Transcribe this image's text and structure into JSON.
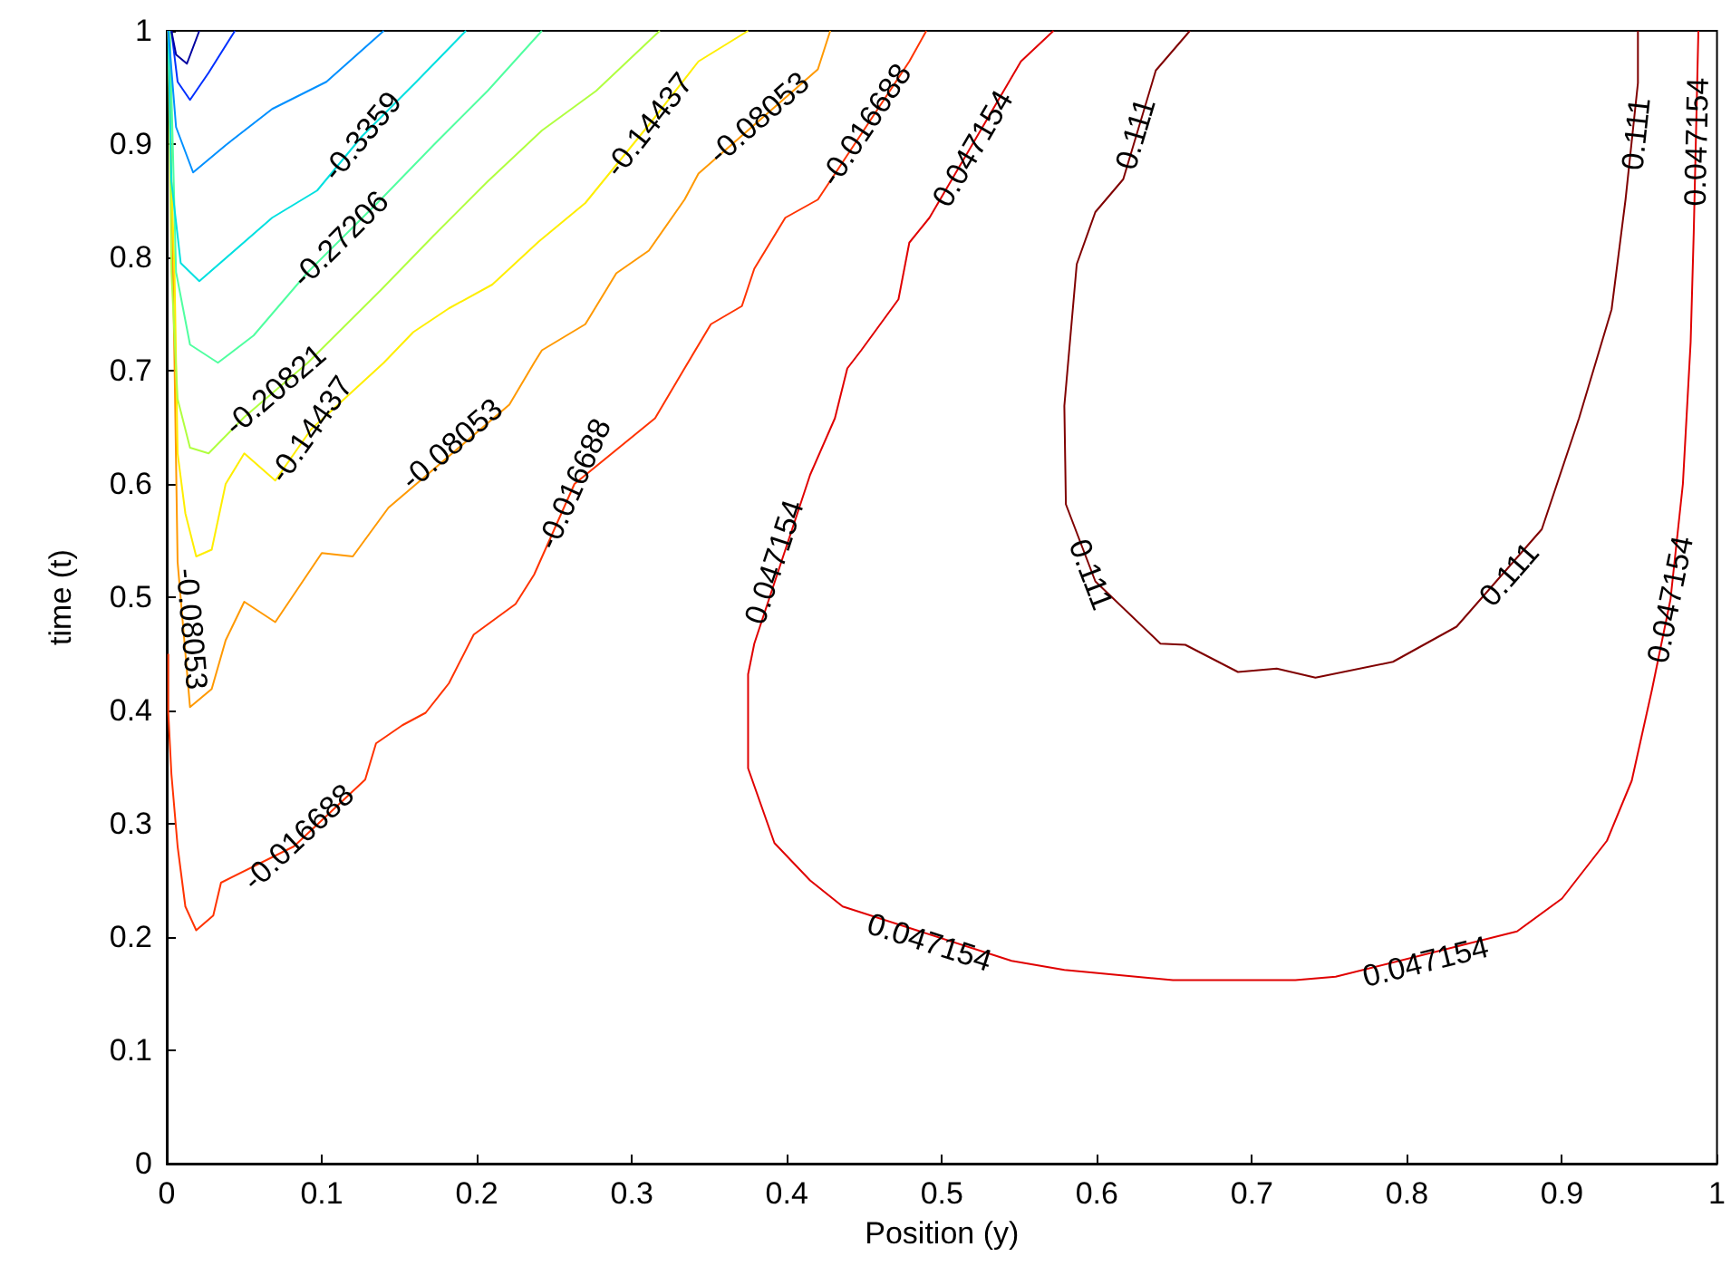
{
  "chart_data": {
    "type": "line",
    "xlabel": "Position (y)",
    "ylabel": "time (t)",
    "xlim": [
      0,
      1
    ],
    "ylim": [
      0,
      1
    ],
    "xticks": [
      0,
      0.1,
      0.2,
      0.3,
      0.4,
      0.5,
      0.6,
      0.7,
      0.8,
      0.9,
      1
    ],
    "yticks": [
      0,
      0.1,
      0.2,
      0.3,
      0.4,
      0.5,
      0.6,
      0.7,
      0.8,
      0.9,
      1
    ],
    "grid": false,
    "marker": "none",
    "line_style": "solid",
    "series": [
      {
        "color": "#800000",
        "x": [
          0.66,
          0.638,
          0.617,
          0.599,
          0.587,
          0.579,
          0.58,
          0.599,
          0.641,
          0.657,
          0.691,
          0.716,
          0.741,
          0.791,
          0.832,
          0.887,
          0.911,
          0.932,
          0.941,
          0.949,
          0.949
        ],
        "values": [
          1,
          0.965,
          0.869,
          0.84,
          0.794,
          0.669,
          0.582,
          0.514,
          0.459,
          0.458,
          0.434,
          0.437,
          0.429,
          0.443,
          0.474,
          0.56,
          0.658,
          0.754,
          0.851,
          0.954,
          1
        ]
      },
      {
        "color": "#e00000",
        "x": [
          0.572,
          0.551,
          0.492,
          0.479,
          0.472,
          0.448,
          0.439,
          0.431,
          0.415,
          0.379,
          0.375,
          0.375,
          0.392,
          0.415,
          0.436,
          0.545,
          0.579,
          0.649,
          0.728,
          0.754,
          0.871,
          0.9,
          0.929,
          0.945,
          0.958,
          0.97,
          0.978,
          0.983,
          0.985,
          0.988
        ],
        "values": [
          1,
          0.973,
          0.835,
          0.813,
          0.763,
          0.718,
          0.702,
          0.658,
          0.608,
          0.459,
          0.432,
          0.349,
          0.283,
          0.25,
          0.227,
          0.179,
          0.171,
          0.162,
          0.162,
          0.165,
          0.205,
          0.234,
          0.285,
          0.338,
          0.418,
          0.498,
          0.6,
          0.725,
          0.822,
          1
        ]
      },
      {
        "color": "#ff3300",
        "x": [
          0.001,
          0.001,
          0.003,
          0.007,
          0.012,
          0.019,
          0.03,
          0.035,
          0.082,
          0.128,
          0.135,
          0.152,
          0.167,
          0.182,
          0.198,
          0.225,
          0.237,
          0.263,
          0.315,
          0.334,
          0.351,
          0.371,
          0.379,
          0.399,
          0.42,
          0.479,
          0.49
        ],
        "values": [
          0.45,
          0.398,
          0.344,
          0.28,
          0.227,
          0.206,
          0.219,
          0.248,
          0.28,
          0.339,
          0.371,
          0.387,
          0.398,
          0.424,
          0.467,
          0.494,
          0.52,
          0.6,
          0.658,
          0.702,
          0.741,
          0.757,
          0.79,
          0.835,
          0.851,
          0.973,
          1
        ]
      },
      {
        "color": "#ff9900",
        "x": [
          0.001,
          0.003,
          0.005,
          0.007,
          0.015,
          0.029,
          0.038,
          0.05,
          0.07,
          0.1,
          0.12,
          0.143,
          0.221,
          0.237,
          0.242,
          0.27,
          0.29,
          0.311,
          0.334,
          0.343,
          0.42,
          0.428
        ],
        "values": [
          1,
          0.867,
          0.707,
          0.531,
          0.403,
          0.419,
          0.462,
          0.496,
          0.478,
          0.539,
          0.536,
          0.579,
          0.67,
          0.707,
          0.718,
          0.741,
          0.786,
          0.806,
          0.851,
          0.874,
          0.966,
          1
        ]
      },
      {
        "color": "#ffee00",
        "x": [
          0.002,
          0.003,
          0.005,
          0.007,
          0.012,
          0.019,
          0.029,
          0.038,
          0.05,
          0.07,
          0.093,
          0.14,
          0.159,
          0.182,
          0.21,
          0.24,
          0.27,
          0.311,
          0.343,
          0.375
        ],
        "values": [
          1,
          0.867,
          0.787,
          0.627,
          0.574,
          0.536,
          0.542,
          0.6,
          0.627,
          0.603,
          0.648,
          0.707,
          0.734,
          0.755,
          0.776,
          0.814,
          0.848,
          0.917,
          0.973,
          1
        ]
      },
      {
        "color": "#b0ff40",
        "x": [
          0.001,
          0.003,
          0.007,
          0.015,
          0.027,
          0.05,
          0.091,
          0.138,
          0.172,
          0.207,
          0.242,
          0.277,
          0.318
        ],
        "values": [
          1,
          0.787,
          0.675,
          0.632,
          0.627,
          0.659,
          0.707,
          0.771,
          0.819,
          0.867,
          0.912,
          0.947,
          1
        ]
      },
      {
        "color": "#50ffa0",
        "x": [
          0.002,
          0.006,
          0.015,
          0.033,
          0.056,
          0.091,
          0.138,
          0.172,
          0.207,
          0.242
        ],
        "values": [
          1,
          0.787,
          0.723,
          0.707,
          0.731,
          0.787,
          0.851,
          0.899,
          0.947,
          1
        ]
      },
      {
        "color": "#00e0e0",
        "x": [
          0.001,
          0.003,
          0.009,
          0.021,
          0.068,
          0.097,
          0.126,
          0.161,
          0.193
        ],
        "values": [
          1,
          0.867,
          0.795,
          0.779,
          0.835,
          0.859,
          0.907,
          0.955,
          1
        ]
      },
      {
        "color": "#0090ff",
        "x": [
          0.001,
          0.006,
          0.017,
          0.038,
          0.068,
          0.103,
          0.14
        ],
        "values": [
          1,
          0.915,
          0.875,
          0.899,
          0.931,
          0.955,
          1
        ]
      },
      {
        "color": "#0030ff",
        "x": [
          0.003,
          0.007,
          0.015,
          0.027,
          0.044
        ],
        "values": [
          1,
          0.955,
          0.939,
          0.963,
          1
        ]
      },
      {
        "color": "#0000a0",
        "x": [
          0.003,
          0.006,
          0.013,
          0.021
        ],
        "values": [
          1,
          0.979,
          0.971,
          1
        ]
      }
    ],
    "annotations": [
      {
        "text": "0.111",
        "x": 0.625,
        "y": 0.909
      },
      {
        "text": "0.111",
        "x": 0.596,
        "y": 0.52
      },
      {
        "text": "0.111",
        "x": 0.866,
        "y": 0.52
      },
      {
        "text": "0.111",
        "x": 0.948,
        "y": 0.909
      },
      {
        "text": "0.047154",
        "x": 0.52,
        "y": 0.896
      },
      {
        "text": "0.047154",
        "x": 0.392,
        "y": 0.531
      },
      {
        "text": "0.047154",
        "x": 0.492,
        "y": 0.195
      },
      {
        "text": "0.047154",
        "x": 0.812,
        "y": 0.178
      },
      {
        "text": "0.047154",
        "x": 0.97,
        "y": 0.498
      },
      {
        "text": "0.047154",
        "x": 0.987,
        "y": 0.902
      },
      {
        "text": "-0.016688",
        "x": 0.085,
        "y": 0.288
      },
      {
        "text": "-0.016688",
        "x": 0.263,
        "y": 0.6
      },
      {
        "text": "-0.016688",
        "x": 0.451,
        "y": 0.917
      },
      {
        "text": "-0.08053",
        "x": 0.016,
        "y": 0.472
      },
      {
        "text": "-0.08053",
        "x": 0.184,
        "y": 0.635
      },
      {
        "text": "-0.08053",
        "x": 0.382,
        "y": 0.923
      },
      {
        "text": "-0.14437",
        "x": 0.093,
        "y": 0.648
      },
      {
        "text": "-0.14437",
        "x": 0.311,
        "y": 0.917
      },
      {
        "text": "-0.20821",
        "x": 0.07,
        "y": 0.683
      },
      {
        "text": "-0.27206",
        "x": 0.112,
        "y": 0.816
      },
      {
        "text": "-0.3359",
        "x": 0.126,
        "y": 0.907
      }
    ]
  }
}
